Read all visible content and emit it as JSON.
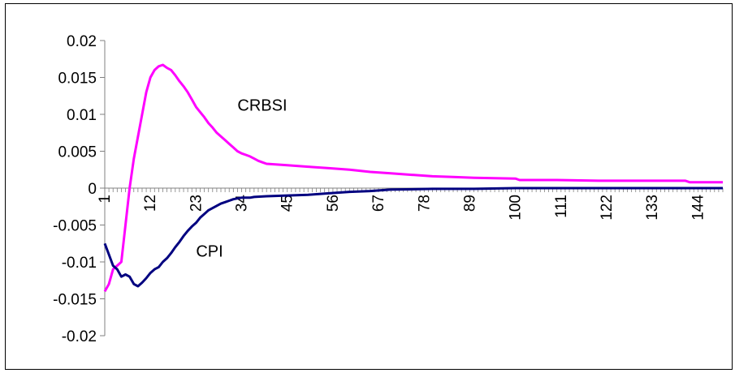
{
  "chart_data": {
    "type": "line",
    "title": "",
    "xlabel": "",
    "ylabel": "",
    "x_range": [
      1,
      150
    ],
    "x_tick_labels": [
      1,
      12,
      23,
      34,
      45,
      56,
      67,
      78,
      89,
      100,
      111,
      122,
      133,
      144
    ],
    "y_tick_labels": [
      "0.02",
      "0.015",
      "0.01",
      "0.005",
      "0",
      "-0.005",
      "-0.01",
      "-0.015",
      "-0.02"
    ],
    "ylim": [
      -0.02,
      0.02
    ],
    "grid": false,
    "legend": "none",
    "series": [
      {
        "name": "CRBSI",
        "color": "#ff00ff",
        "points": [
          [
            1,
            -0.014
          ],
          [
            2,
            -0.013
          ],
          [
            3,
            -0.011
          ],
          [
            4,
            -0.0105
          ],
          [
            5,
            -0.01
          ],
          [
            6,
            -0.005
          ],
          [
            7,
            0.0
          ],
          [
            8,
            0.004
          ],
          [
            9,
            0.007
          ],
          [
            10,
            0.01
          ],
          [
            11,
            0.013
          ],
          [
            12,
            0.015
          ],
          [
            13,
            0.016
          ],
          [
            14,
            0.0165
          ],
          [
            15,
            0.0167
          ],
          [
            16,
            0.0163
          ],
          [
            17,
            0.016
          ],
          [
            18,
            0.0153
          ],
          [
            19,
            0.0145
          ],
          [
            20,
            0.0138
          ],
          [
            21,
            0.013
          ],
          [
            22,
            0.012
          ],
          [
            23,
            0.011
          ],
          [
            24,
            0.0103
          ],
          [
            25,
            0.0096
          ],
          [
            26,
            0.0088
          ],
          [
            27,
            0.0082
          ],
          [
            28,
            0.0075
          ],
          [
            29,
            0.007
          ],
          [
            30,
            0.0065
          ],
          [
            31,
            0.006
          ],
          [
            32,
            0.0055
          ],
          [
            33,
            0.005
          ],
          [
            34,
            0.0047
          ],
          [
            35,
            0.0045
          ],
          [
            36,
            0.0043
          ],
          [
            37,
            0.004
          ],
          [
            38,
            0.0037
          ],
          [
            39,
            0.0035
          ],
          [
            40,
            0.0033
          ],
          [
            45,
            0.0031
          ],
          [
            50,
            0.0029
          ],
          [
            55,
            0.0027
          ],
          [
            60,
            0.0025
          ],
          [
            65,
            0.0022
          ],
          [
            70,
            0.002
          ],
          [
            75,
            0.0018
          ],
          [
            80,
            0.0016
          ],
          [
            85,
            0.0015
          ],
          [
            90,
            0.0014
          ],
          [
            100,
            0.0013
          ],
          [
            101,
            0.0011
          ],
          [
            110,
            0.0011
          ],
          [
            120,
            0.001
          ],
          [
            130,
            0.001
          ],
          [
            141,
            0.001
          ],
          [
            142,
            0.0008
          ],
          [
            150,
            0.0008
          ]
        ]
      },
      {
        "name": "CPI",
        "color": "#000080",
        "points": [
          [
            1,
            -0.0075
          ],
          [
            2,
            -0.009
          ],
          [
            3,
            -0.0105
          ],
          [
            4,
            -0.011
          ],
          [
            5,
            -0.012
          ],
          [
            6,
            -0.0117
          ],
          [
            7,
            -0.012
          ],
          [
            8,
            -0.013
          ],
          [
            9,
            -0.0133
          ],
          [
            10,
            -0.0128
          ],
          [
            11,
            -0.0122
          ],
          [
            12,
            -0.0115
          ],
          [
            13,
            -0.011
          ],
          [
            14,
            -0.0107
          ],
          [
            15,
            -0.01
          ],
          [
            16,
            -0.0095
          ],
          [
            17,
            -0.0088
          ],
          [
            18,
            -0.008
          ],
          [
            19,
            -0.0073
          ],
          [
            20,
            -0.0065
          ],
          [
            21,
            -0.0058
          ],
          [
            22,
            -0.0052
          ],
          [
            23,
            -0.0047
          ],
          [
            24,
            -0.004
          ],
          [
            25,
            -0.0035
          ],
          [
            26,
            -0.003
          ],
          [
            27,
            -0.0027
          ],
          [
            28,
            -0.0024
          ],
          [
            29,
            -0.0021
          ],
          [
            30,
            -0.0019
          ],
          [
            31,
            -0.0017
          ],
          [
            32,
            -0.0015
          ],
          [
            33,
            -0.0014
          ],
          [
            34,
            -0.0013
          ],
          [
            36,
            -0.0013
          ],
          [
            37,
            -0.0012
          ],
          [
            40,
            -0.0011
          ],
          [
            45,
            -0.001
          ],
          [
            50,
            -0.0009
          ],
          [
            55,
            -0.0007
          ],
          [
            60,
            -0.0005
          ],
          [
            65,
            -0.0004
          ],
          [
            70,
            -0.0002
          ],
          [
            80,
            -0.0001
          ],
          [
            90,
            -0.0001
          ],
          [
            100,
            0.0
          ],
          [
            110,
            0.0
          ],
          [
            120,
            0.0
          ],
          [
            130,
            0.0
          ],
          [
            140,
            0.0
          ],
          [
            150,
            0.0
          ]
        ]
      }
    ],
    "series_label_anchor": {
      "CRBSI": [
        33,
        0.0105
      ],
      "CPI": [
        23,
        -0.0093
      ]
    }
  }
}
